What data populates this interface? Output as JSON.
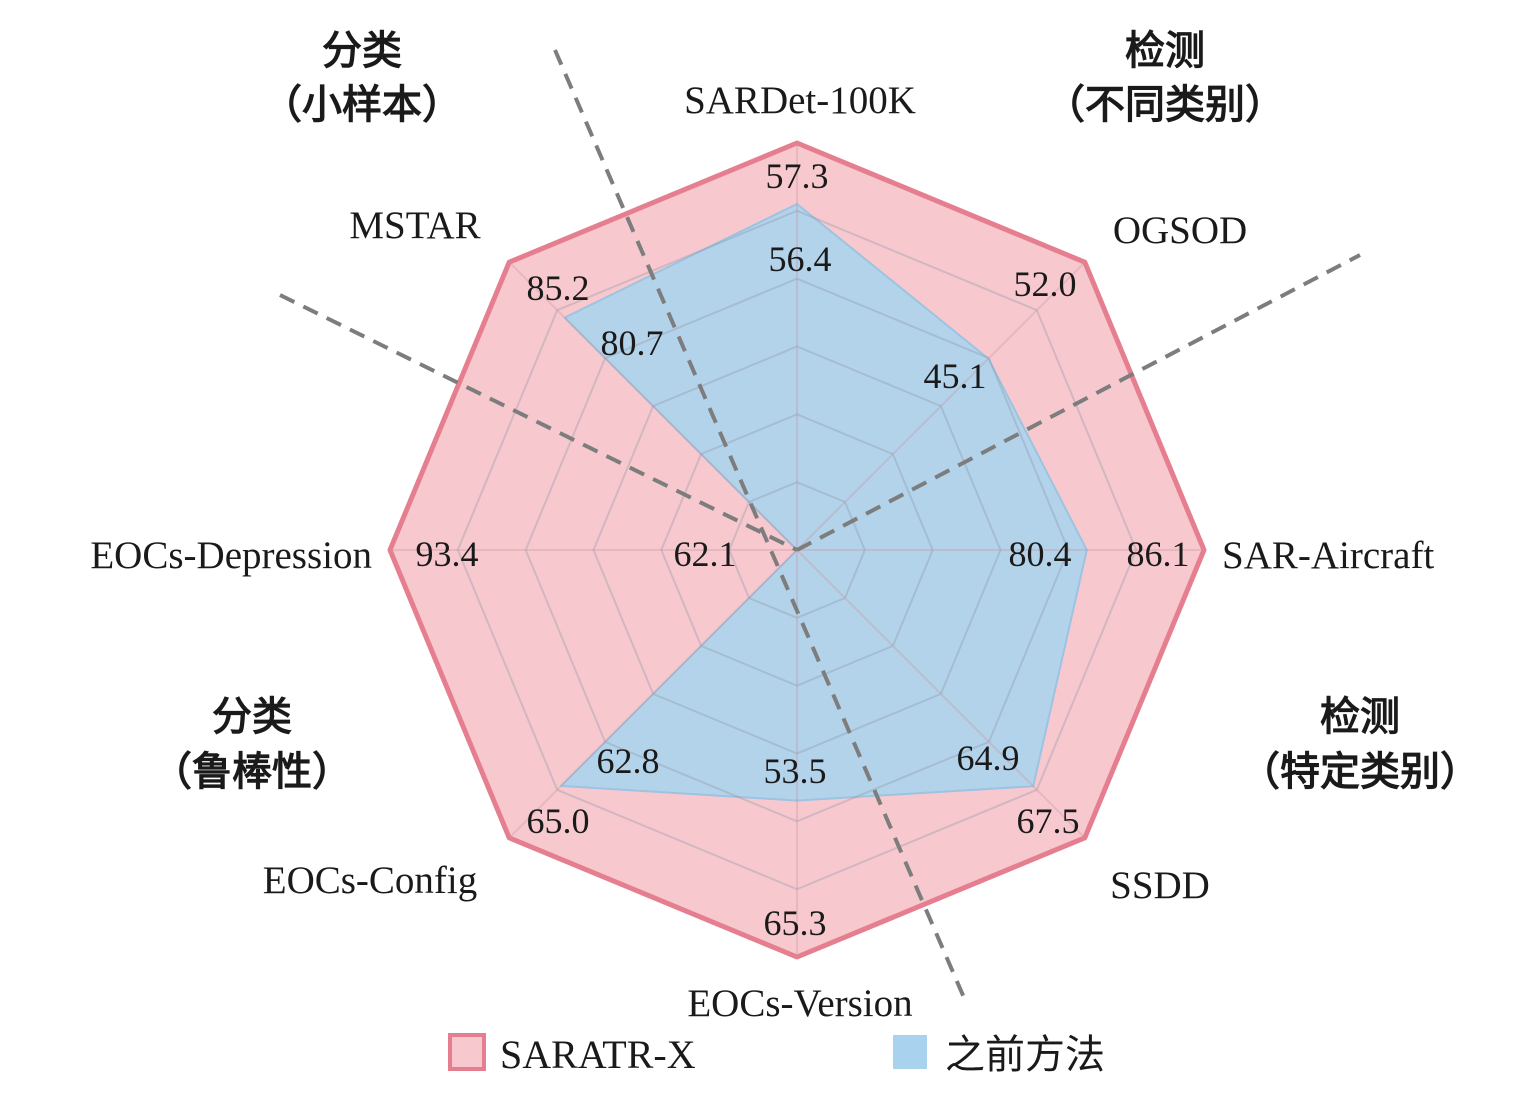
{
  "chart_data": {
    "type": "radar",
    "axes": [
      "SARDet-100K",
      "OGSOD",
      "SAR-Aircraft",
      "SSDD",
      "EOCs-Version",
      "EOCs-Config",
      "EOCs-Depression",
      "MSTAR"
    ],
    "series": [
      {
        "name": "SARATR-X",
        "values": [
          57.3,
          52.0,
          86.1,
          67.5,
          65.3,
          65.0,
          93.4,
          85.2
        ],
        "color": "#f7c9cf",
        "stroke": "#e57f8f"
      },
      {
        "name": "之前方法",
        "values": [
          56.4,
          45.1,
          80.4,
          64.9,
          53.5,
          62.8,
          62.1,
          80.7
        ],
        "color": "#b3d3ea",
        "stroke": "#9cc4e2"
      }
    ],
    "value_labels": {
      "SARATR-X": [
        "57.3",
        "52.0",
        "86.1",
        "67.5",
        "65.3",
        "65.0",
        "93.4",
        "85.2"
      ],
      "之前方法": [
        "56.4",
        "45.1",
        "80.4",
        "64.9",
        "53.5",
        "62.8",
        "62.1",
        "80.7"
      ]
    },
    "groups": [
      {
        "line1": "分类",
        "line2": "（小样本）"
      },
      {
        "line1": "检测",
        "line2": "（不同类别）"
      },
      {
        "line1": "分类",
        "line2": "（鲁棒性）"
      },
      {
        "line1": "检测",
        "line2": "（特定类别）"
      }
    ],
    "legend": {
      "placement": "bottom",
      "items": [
        "SARATR-X",
        "之前方法"
      ]
    },
    "grid": true
  }
}
